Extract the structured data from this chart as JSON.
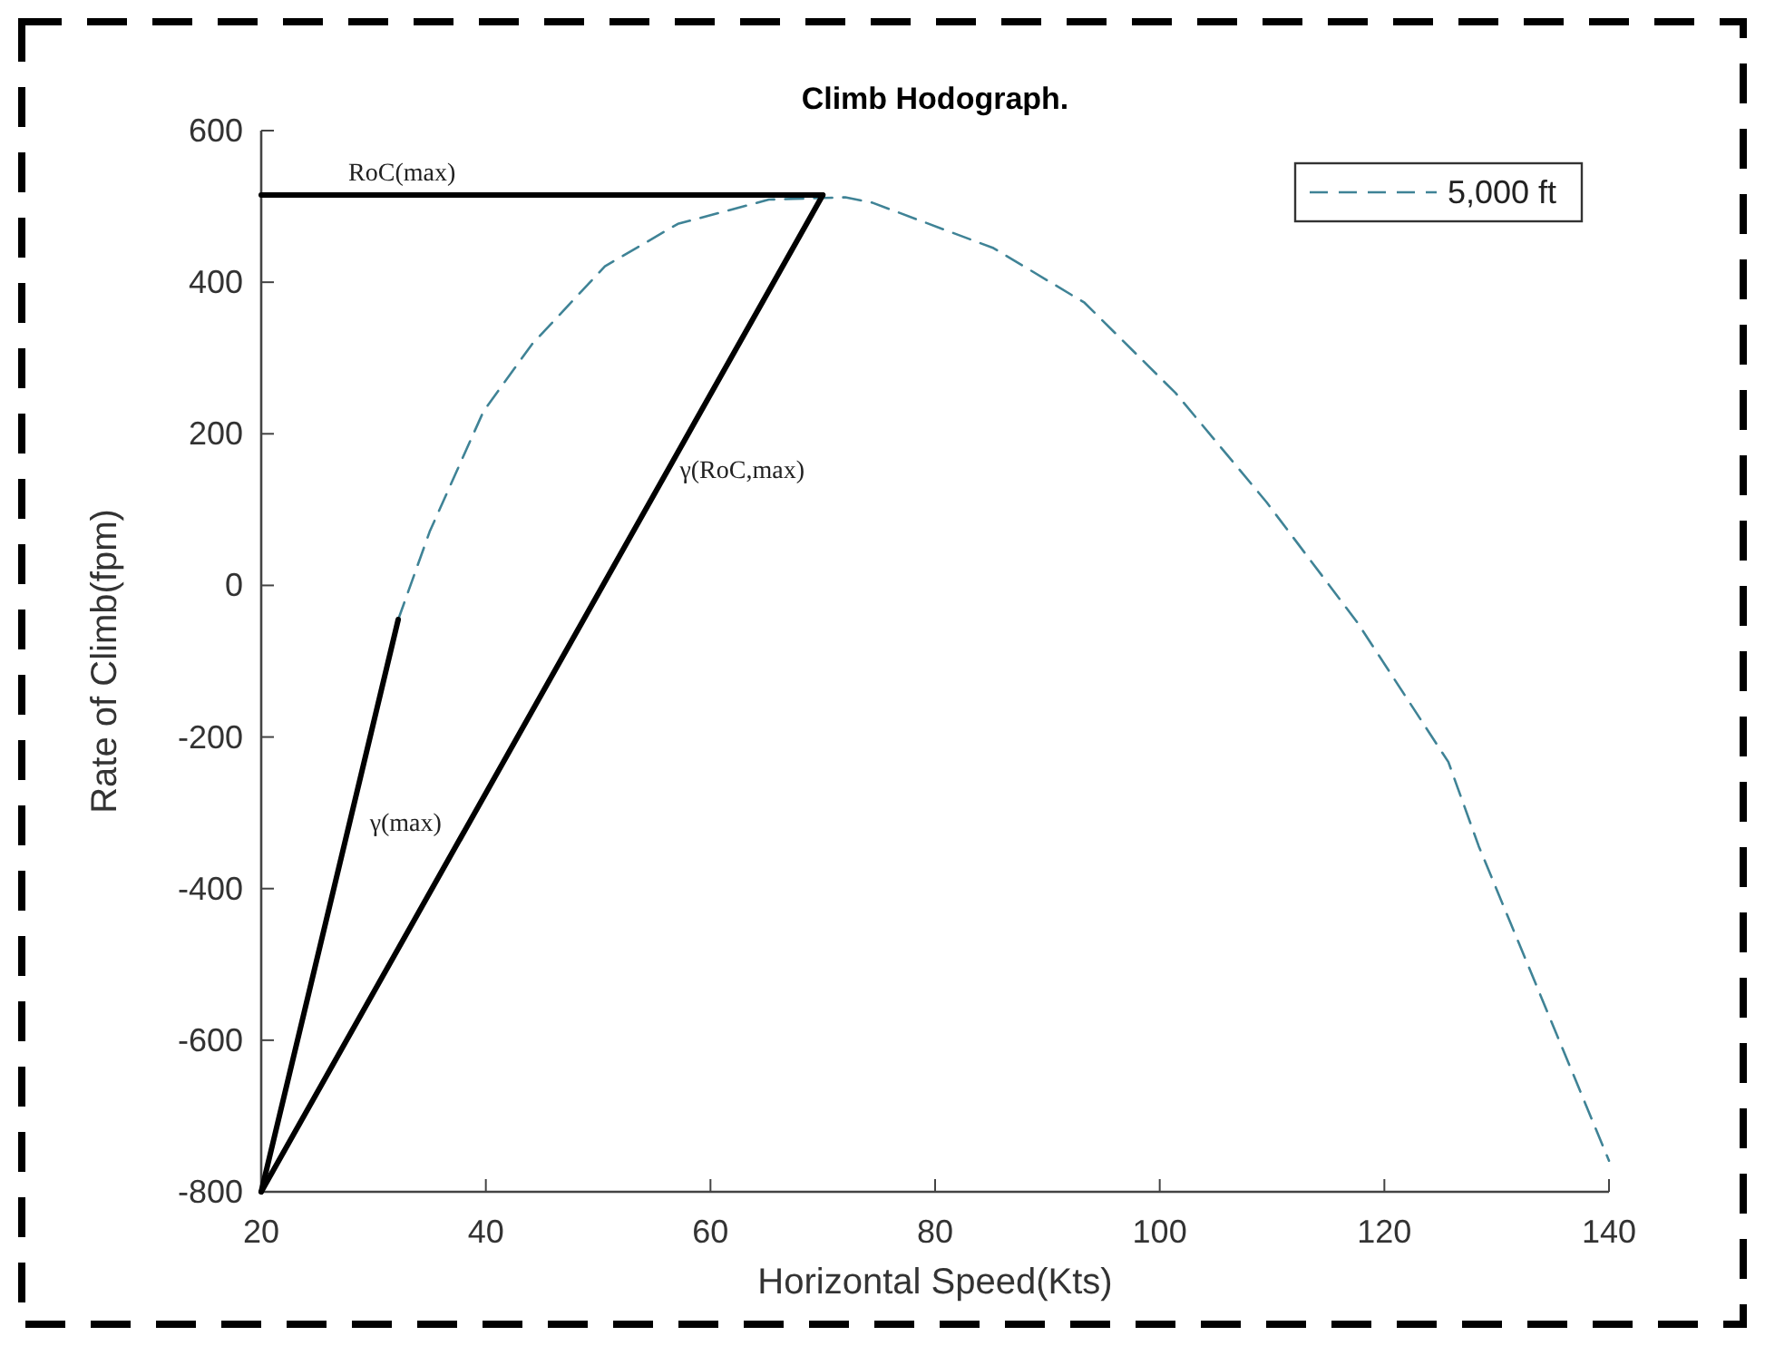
{
  "chart_data": {
    "type": "line",
    "title": "Climb Hodograph.",
    "xlabel": "Horizontal Speed(Kts)",
    "ylabel": "Rate of Climb(fpm)",
    "xlim": [
      20,
      140
    ],
    "xticks": [
      20,
      40,
      60,
      80,
      100,
      120,
      140
    ],
    "ylim": [
      -800,
      600
    ],
    "yticks": [
      -800,
      -600,
      -400,
      -200,
      0,
      200,
      400,
      600
    ],
    "grid": false,
    "legend": "top right",
    "marker": "none",
    "series": [
      {
        "name": "5,000 ft",
        "color": "#3f8396",
        "line_style": "dashed",
        "x": [
          32.2,
          35,
          39.8,
          44.1,
          50.6,
          57.1,
          65.2,
          72,
          74.4,
          85.2,
          93.3,
          101.4,
          109.5,
          117.6,
          125.7,
          128.4,
          140
        ],
        "values": [
          -45,
          71,
          230,
          318,
          421,
          477,
          509,
          512,
          505,
          445,
          373,
          254,
          110,
          -49,
          -233,
          -344,
          -759
        ]
      },
      {
        "color": "#000000",
        "line_style": "solid",
        "x": [
          20,
          70
        ],
        "values": [
          515,
          515
        ]
      },
      {
        "color": "#000000",
        "line_style": "solid",
        "x": [
          20,
          70
        ],
        "values": [
          -800,
          515
        ]
      },
      {
        "color": "#000000",
        "line_style": "solid",
        "x": [
          20,
          32.2
        ],
        "values": [
          -800,
          -45
        ]
      }
    ],
    "annotations": [
      {
        "text": "RoC(max)",
        "x": 25.5,
        "y": 515
      },
      {
        "text": "γ(RoC,max)",
        "x": 55,
        "y": 122
      },
      {
        "text": "γ(max)",
        "x": 27.4,
        "y": -343
      }
    ]
  }
}
